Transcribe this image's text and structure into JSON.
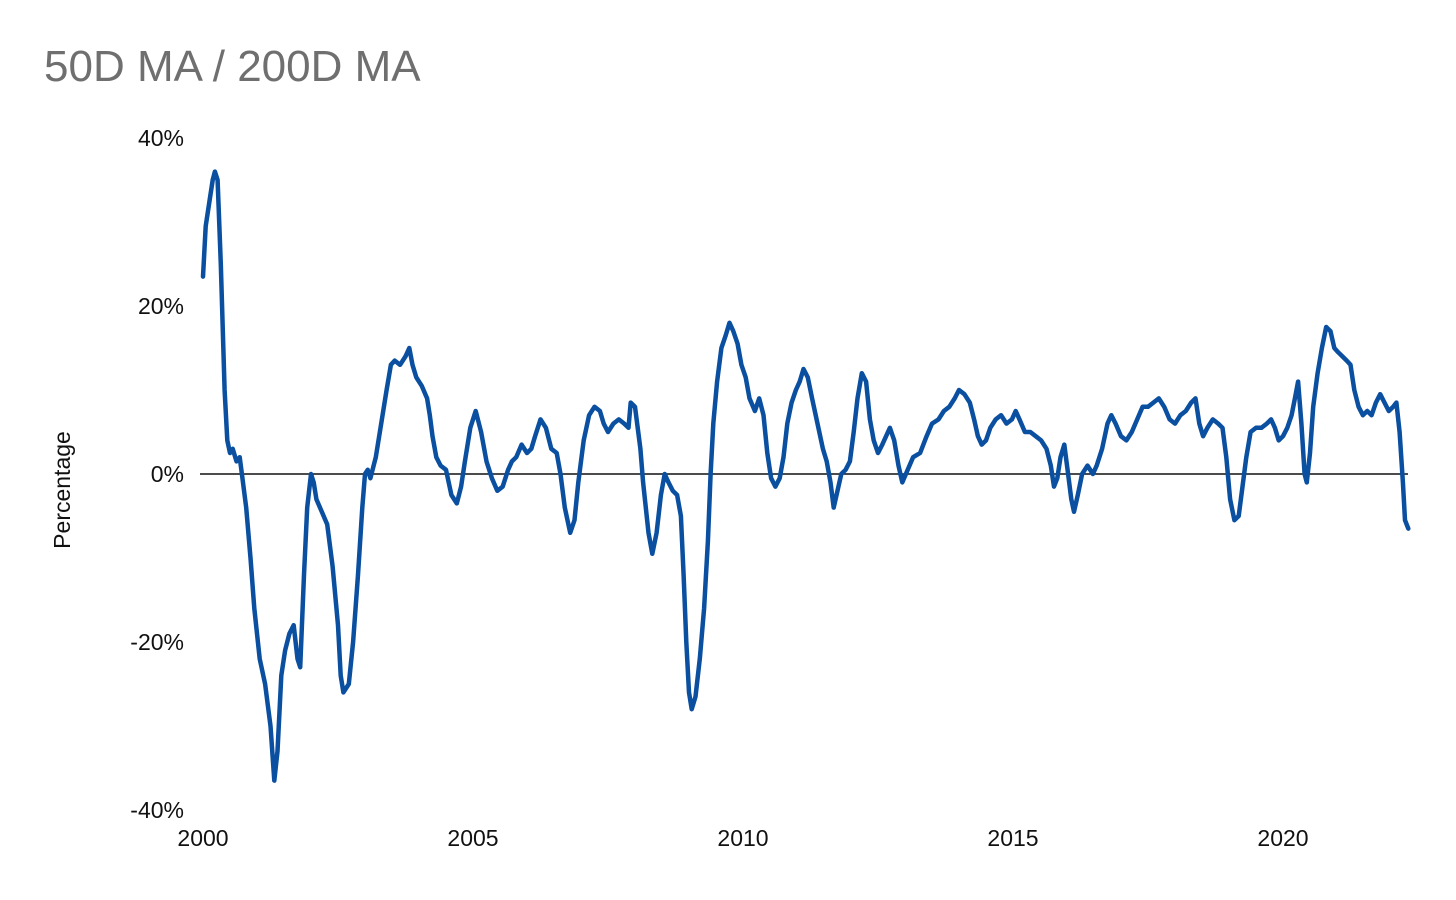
{
  "chart_data": {
    "type": "line",
    "title": "50D MA / 200D MA",
    "xlabel": "",
    "ylabel": "Percentage",
    "xlim": [
      2000,
      2022.3
    ],
    "ylim": [
      -40,
      40
    ],
    "x_ticks": [
      {
        "value": 2000,
        "label": "2000"
      },
      {
        "value": 2005,
        "label": "2005"
      },
      {
        "value": 2010,
        "label": "2010"
      },
      {
        "value": 2015,
        "label": "2015"
      },
      {
        "value": 2020,
        "label": "2020"
      }
    ],
    "y_ticks": [
      {
        "value": 40,
        "label": "40%"
      },
      {
        "value": 20,
        "label": "20%"
      },
      {
        "value": 0,
        "label": "0%"
      },
      {
        "value": -20,
        "label": "-20%"
      },
      {
        "value": -40,
        "label": "-40%"
      }
    ],
    "zero_line": true,
    "grid": false,
    "legend": "none",
    "colors": {
      "series": "#0a4fa0",
      "zero_line": "#111111",
      "title": "#6f6f6f"
    },
    "series": [
      {
        "name": "50D MA / 200D MA",
        "points": [
          [
            2000.0,
            23.5
          ],
          [
            2000.05,
            29.5
          ],
          [
            2000.12,
            32.5
          ],
          [
            2000.18,
            35.0
          ],
          [
            2000.22,
            36.0
          ],
          [
            2000.27,
            35.0
          ],
          [
            2000.33,
            25.0
          ],
          [
            2000.4,
            10.0
          ],
          [
            2000.45,
            4.0
          ],
          [
            2000.5,
            2.5
          ],
          [
            2000.55,
            3.0
          ],
          [
            2000.62,
            1.5
          ],
          [
            2000.68,
            2.0
          ],
          [
            2000.72,
            0.0
          ],
          [
            2000.8,
            -4.0
          ],
          [
            2000.88,
            -10.0
          ],
          [
            2000.95,
            -16.0
          ],
          [
            2001.05,
            -22.0
          ],
          [
            2001.15,
            -25.0
          ],
          [
            2001.25,
            -30.0
          ],
          [
            2001.32,
            -36.5
          ],
          [
            2001.38,
            -33.0
          ],
          [
            2001.45,
            -24.0
          ],
          [
            2001.52,
            -21.0
          ],
          [
            2001.6,
            -19.0
          ],
          [
            2001.68,
            -18.0
          ],
          [
            2001.75,
            -22.0
          ],
          [
            2001.8,
            -23.0
          ],
          [
            2001.87,
            -12.0
          ],
          [
            2001.93,
            -4.0
          ],
          [
            2002.0,
            0.0
          ],
          [
            2002.05,
            -1.0
          ],
          [
            2002.1,
            -3.0
          ],
          [
            2002.2,
            -4.5
          ],
          [
            2002.3,
            -6.0
          ],
          [
            2002.4,
            -11.0
          ],
          [
            2002.5,
            -18.0
          ],
          [
            2002.55,
            -24.0
          ],
          [
            2002.6,
            -26.0
          ],
          [
            2002.7,
            -25.0
          ],
          [
            2002.78,
            -20.0
          ],
          [
            2002.87,
            -12.0
          ],
          [
            2002.95,
            -4.0
          ],
          [
            2003.0,
            0.0
          ],
          [
            2003.05,
            0.5
          ],
          [
            2003.1,
            -0.5
          ],
          [
            2003.2,
            2.0
          ],
          [
            2003.3,
            6.0
          ],
          [
            2003.4,
            10.0
          ],
          [
            2003.48,
            13.0
          ],
          [
            2003.55,
            13.5
          ],
          [
            2003.65,
            13.0
          ],
          [
            2003.75,
            14.0
          ],
          [
            2003.82,
            15.0
          ],
          [
            2003.88,
            13.0
          ],
          [
            2003.95,
            11.5
          ],
          [
            2004.05,
            10.5
          ],
          [
            2004.15,
            9.0
          ],
          [
            2004.2,
            7.0
          ],
          [
            2004.25,
            4.5
          ],
          [
            2004.32,
            2.0
          ],
          [
            2004.4,
            1.0
          ],
          [
            2004.5,
            0.5
          ],
          [
            2004.6,
            -2.5
          ],
          [
            2004.7,
            -3.5
          ],
          [
            2004.78,
            -1.5
          ],
          [
            2004.85,
            1.5
          ],
          [
            2004.95,
            5.5
          ],
          [
            2005.05,
            7.5
          ],
          [
            2005.15,
            5.0
          ],
          [
            2005.25,
            1.5
          ],
          [
            2005.35,
            -0.5
          ],
          [
            2005.45,
            -2.0
          ],
          [
            2005.55,
            -1.5
          ],
          [
            2005.65,
            0.5
          ],
          [
            2005.72,
            1.5
          ],
          [
            2005.8,
            2.0
          ],
          [
            2005.9,
            3.5
          ],
          [
            2006.0,
            2.5
          ],
          [
            2006.08,
            3.0
          ],
          [
            2006.15,
            4.5
          ],
          [
            2006.25,
            6.5
          ],
          [
            2006.35,
            5.5
          ],
          [
            2006.45,
            3.0
          ],
          [
            2006.55,
            2.5
          ],
          [
            2006.62,
            0.0
          ],
          [
            2006.7,
            -4.0
          ],
          [
            2006.8,
            -7.0
          ],
          [
            2006.88,
            -5.5
          ],
          [
            2006.95,
            -1.0
          ],
          [
            2007.05,
            4.0
          ],
          [
            2007.15,
            7.0
          ],
          [
            2007.25,
            8.0
          ],
          [
            2007.35,
            7.5
          ],
          [
            2007.42,
            6.0
          ],
          [
            2007.5,
            5.0
          ],
          [
            2007.6,
            6.0
          ],
          [
            2007.7,
            6.5
          ],
          [
            2007.8,
            6.0
          ],
          [
            2007.88,
            5.5
          ],
          [
            2007.92,
            8.5
          ],
          [
            2008.0,
            8.0
          ],
          [
            2008.05,
            5.5
          ],
          [
            2008.1,
            3.0
          ],
          [
            2008.15,
            -1.0
          ],
          [
            2008.25,
            -7.0
          ],
          [
            2008.32,
            -9.5
          ],
          [
            2008.4,
            -7.0
          ],
          [
            2008.48,
            -2.5
          ],
          [
            2008.55,
            0.0
          ],
          [
            2008.62,
            -1.0
          ],
          [
            2008.7,
            -2.0
          ],
          [
            2008.78,
            -2.5
          ],
          [
            2008.85,
            -5.0
          ],
          [
            2008.9,
            -12.0
          ],
          [
            2008.95,
            -20.0
          ],
          [
            2009.0,
            -26.0
          ],
          [
            2009.05,
            -28.0
          ],
          [
            2009.12,
            -26.5
          ],
          [
            2009.2,
            -22.0
          ],
          [
            2009.28,
            -16.0
          ],
          [
            2009.35,
            -8.0
          ],
          [
            2009.4,
            0.0
          ],
          [
            2009.45,
            6.0
          ],
          [
            2009.52,
            11.0
          ],
          [
            2009.6,
            15.0
          ],
          [
            2009.68,
            16.5
          ],
          [
            2009.75,
            18.0
          ],
          [
            2009.82,
            17.0
          ],
          [
            2009.9,
            15.5
          ],
          [
            2009.97,
            13.0
          ],
          [
            2010.05,
            11.5
          ],
          [
            2010.12,
            9.0
          ],
          [
            2010.22,
            7.5
          ],
          [
            2010.3,
            9.0
          ],
          [
            2010.38,
            7.0
          ],
          [
            2010.45,
            2.5
          ],
          [
            2010.52,
            -0.5
          ],
          [
            2010.6,
            -1.5
          ],
          [
            2010.68,
            -0.5
          ],
          [
            2010.75,
            2.0
          ],
          [
            2010.82,
            6.0
          ],
          [
            2010.9,
            8.5
          ],
          [
            2010.98,
            10.0
          ],
          [
            2011.05,
            11.0
          ],
          [
            2011.12,
            12.5
          ],
          [
            2011.2,
            11.5
          ],
          [
            2011.28,
            9.0
          ],
          [
            2011.38,
            6.0
          ],
          [
            2011.48,
            3.0
          ],
          [
            2011.55,
            1.5
          ],
          [
            2011.62,
            -1.0
          ],
          [
            2011.68,
            -4.0
          ],
          [
            2011.75,
            -2.0
          ],
          [
            2011.82,
            0.0
          ],
          [
            2011.9,
            0.5
          ],
          [
            2011.98,
            1.5
          ],
          [
            2012.05,
            5.0
          ],
          [
            2012.12,
            9.0
          ],
          [
            2012.2,
            12.0
          ],
          [
            2012.28,
            11.0
          ],
          [
            2012.35,
            6.5
          ],
          [
            2012.42,
            4.0
          ],
          [
            2012.5,
            2.5
          ],
          [
            2012.58,
            3.5
          ],
          [
            2012.65,
            4.5
          ],
          [
            2012.72,
            5.5
          ],
          [
            2012.8,
            4.0
          ],
          [
            2012.88,
            1.0
          ],
          [
            2012.95,
            -1.0
          ],
          [
            2013.05,
            0.5
          ],
          [
            2013.15,
            2.0
          ],
          [
            2013.28,
            2.5
          ],
          [
            2013.4,
            4.5
          ],
          [
            2013.5,
            6.0
          ],
          [
            2013.62,
            6.5
          ],
          [
            2013.72,
            7.5
          ],
          [
            2013.82,
            8.0
          ],
          [
            2013.92,
            9.0
          ],
          [
            2014.0,
            10.0
          ],
          [
            2014.1,
            9.5
          ],
          [
            2014.2,
            8.5
          ],
          [
            2014.28,
            6.5
          ],
          [
            2014.35,
            4.5
          ],
          [
            2014.42,
            3.5
          ],
          [
            2014.5,
            4.0
          ],
          [
            2014.58,
            5.5
          ],
          [
            2014.68,
            6.5
          ],
          [
            2014.78,
            7.0
          ],
          [
            2014.88,
            6.0
          ],
          [
            2014.98,
            6.5
          ],
          [
            2015.05,
            7.5
          ],
          [
            2015.12,
            6.5
          ],
          [
            2015.22,
            5.0
          ],
          [
            2015.32,
            5.0
          ],
          [
            2015.42,
            4.5
          ],
          [
            2015.52,
            4.0
          ],
          [
            2015.62,
            3.0
          ],
          [
            2015.7,
            1.0
          ],
          [
            2015.76,
            -1.5
          ],
          [
            2015.82,
            -0.5
          ],
          [
            2015.88,
            2.0
          ],
          [
            2015.95,
            3.5
          ],
          [
            2016.02,
            0.0
          ],
          [
            2016.08,
            -3.0
          ],
          [
            2016.13,
            -4.5
          ],
          [
            2016.2,
            -2.5
          ],
          [
            2016.28,
            0.0
          ],
          [
            2016.38,
            1.0
          ],
          [
            2016.48,
            0.0
          ],
          [
            2016.55,
            1.0
          ],
          [
            2016.65,
            3.0
          ],
          [
            2016.75,
            6.0
          ],
          [
            2016.82,
            7.0
          ],
          [
            2016.9,
            6.0
          ],
          [
            2017.0,
            4.5
          ],
          [
            2017.1,
            4.0
          ],
          [
            2017.2,
            5.0
          ],
          [
            2017.3,
            6.5
          ],
          [
            2017.4,
            8.0
          ],
          [
            2017.5,
            8.0
          ],
          [
            2017.6,
            8.5
          ],
          [
            2017.7,
            9.0
          ],
          [
            2017.8,
            8.0
          ],
          [
            2017.9,
            6.5
          ],
          [
            2018.0,
            6.0
          ],
          [
            2018.1,
            7.0
          ],
          [
            2018.2,
            7.5
          ],
          [
            2018.3,
            8.5
          ],
          [
            2018.38,
            9.0
          ],
          [
            2018.45,
            6.0
          ],
          [
            2018.52,
            4.5
          ],
          [
            2018.6,
            5.5
          ],
          [
            2018.7,
            6.5
          ],
          [
            2018.8,
            6.0
          ],
          [
            2018.88,
            5.5
          ],
          [
            2018.95,
            2.0
          ],
          [
            2019.02,
            -3.0
          ],
          [
            2019.1,
            -5.5
          ],
          [
            2019.18,
            -5.0
          ],
          [
            2019.25,
            -1.5
          ],
          [
            2019.32,
            2.0
          ],
          [
            2019.4,
            5.0
          ],
          [
            2019.5,
            5.5
          ],
          [
            2019.6,
            5.5
          ],
          [
            2019.7,
            6.0
          ],
          [
            2019.78,
            6.5
          ],
          [
            2019.85,
            5.5
          ],
          [
            2019.92,
            4.0
          ],
          [
            2020.0,
            4.5
          ],
          [
            2020.08,
            5.5
          ],
          [
            2020.16,
            7.0
          ],
          [
            2020.22,
            9.0
          ],
          [
            2020.28,
            11.0
          ],
          [
            2020.34,
            6.0
          ],
          [
            2020.4,
            0.0
          ],
          [
            2020.44,
            -1.0
          ],
          [
            2020.5,
            2.5
          ],
          [
            2020.56,
            8.0
          ],
          [
            2020.64,
            12.0
          ],
          [
            2020.72,
            15.0
          ],
          [
            2020.8,
            17.5
          ],
          [
            2020.88,
            17.0
          ],
          [
            2020.95,
            15.0
          ],
          [
            2021.02,
            14.5
          ],
          [
            2021.1,
            14.0
          ],
          [
            2021.18,
            13.5
          ],
          [
            2021.25,
            13.0
          ],
          [
            2021.32,
            10.0
          ],
          [
            2021.4,
            8.0
          ],
          [
            2021.48,
            7.0
          ],
          [
            2021.56,
            7.5
          ],
          [
            2021.64,
            7.0
          ],
          [
            2021.72,
            8.5
          ],
          [
            2021.8,
            9.5
          ],
          [
            2021.88,
            8.5
          ],
          [
            2021.96,
            7.5
          ],
          [
            2022.04,
            8.0
          ],
          [
            2022.1,
            8.5
          ],
          [
            2022.16,
            5.0
          ],
          [
            2022.22,
            -1.0
          ],
          [
            2022.26,
            -5.5
          ],
          [
            2022.32,
            -6.5
          ]
        ]
      }
    ]
  }
}
